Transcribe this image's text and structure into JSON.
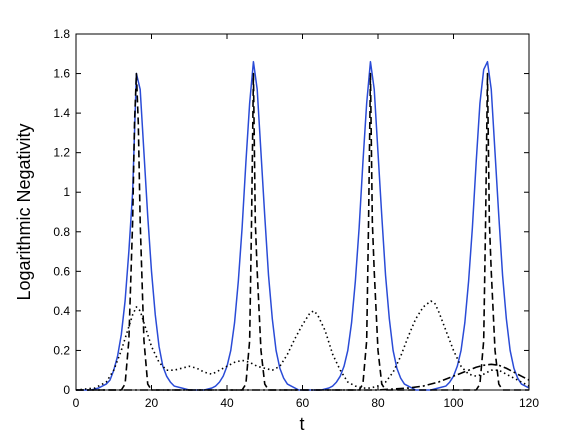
{
  "chart_data": {
    "type": "line",
    "title": "",
    "xlabel": "t",
    "ylabel": "Logarithmic Negativity",
    "xlim": [
      0,
      120
    ],
    "ylim": [
      0,
      1.8
    ],
    "x_ticks": [
      0,
      20,
      40,
      60,
      80,
      100,
      120
    ],
    "y_ticks": [
      0,
      0.2,
      0.4,
      0.6,
      0.8,
      1,
      1.2,
      1.4,
      1.6,
      1.8
    ],
    "x_tick_labels": [
      "0",
      "20",
      "40",
      "60",
      "80",
      "100",
      "120"
    ],
    "y_tick_labels": [
      "0",
      "0.2",
      "0.4",
      "0.6",
      "0.8",
      "1",
      "1.2",
      "1.4",
      "1.6",
      "1.8"
    ],
    "grid": false,
    "legend": "none",
    "series": [
      {
        "style": "solid",
        "color": "#2a4bd7",
        "x": [
          0,
          4,
          6,
          8,
          9,
          10,
          11,
          12,
          13,
          14,
          15,
          16,
          17,
          18,
          19,
          20,
          21,
          22,
          23,
          24,
          25,
          26,
          28,
          30,
          32,
          34,
          36,
          37,
          38,
          39,
          40,
          41,
          42,
          43,
          44,
          45,
          46,
          47,
          48,
          49,
          50,
          51,
          52,
          53,
          54,
          55,
          56,
          57,
          59,
          61,
          63,
          65,
          67,
          68,
          69,
          70,
          71,
          72,
          73,
          74,
          75,
          76,
          77,
          78,
          79,
          80,
          81,
          82,
          83,
          84,
          85,
          86,
          87,
          88,
          90,
          92,
          94,
          96,
          98,
          99,
          100,
          101,
          102,
          103,
          104,
          105,
          106,
          107,
          108,
          109,
          110,
          111,
          112,
          113,
          114,
          115,
          116,
          117,
          118,
          120
        ],
        "y": [
          0,
          0,
          0.01,
          0.03,
          0.05,
          0.1,
          0.17,
          0.28,
          0.45,
          0.7,
          1.0,
          1.6,
          1.52,
          1.2,
          0.88,
          0.6,
          0.38,
          0.22,
          0.12,
          0.07,
          0.04,
          0.02,
          0.01,
          0,
          0,
          0,
          0.01,
          0.02,
          0.04,
          0.07,
          0.12,
          0.2,
          0.34,
          0.55,
          0.82,
          1.15,
          1.45,
          1.66,
          1.52,
          1.2,
          0.88,
          0.58,
          0.36,
          0.2,
          0.11,
          0.06,
          0.03,
          0.02,
          0,
          0,
          0,
          0,
          0.01,
          0.02,
          0.04,
          0.07,
          0.12,
          0.2,
          0.34,
          0.55,
          0.82,
          1.15,
          1.45,
          1.66,
          1.52,
          1.2,
          0.88,
          0.58,
          0.36,
          0.2,
          0.11,
          0.06,
          0.03,
          0.02,
          0,
          0,
          0,
          0.01,
          0.02,
          0.04,
          0.07,
          0.12,
          0.2,
          0.34,
          0.55,
          0.82,
          1.15,
          1.45,
          1.62,
          1.66,
          1.52,
          1.2,
          0.88,
          0.58,
          0.36,
          0.2,
          0.11,
          0.06,
          0.03,
          0.01
        ]
      },
      {
        "style": "dashed",
        "color": "#000000",
        "x": [
          0,
          12,
          13,
          14,
          15,
          15.5,
          16,
          16.5,
          17,
          18,
          19,
          20,
          44,
          45,
          46,
          46.5,
          47,
          47.5,
          48,
          49,
          50,
          51,
          75,
          76,
          77,
          77.5,
          78,
          78.5,
          79,
          80,
          81,
          82,
          106,
          107,
          108,
          108.5,
          109,
          109.5,
          110,
          111,
          112,
          113,
          120
        ],
        "y": [
          0,
          0,
          0.03,
          0.25,
          0.85,
          1.35,
          1.6,
          1.35,
          0.85,
          0.25,
          0.03,
          0,
          0,
          0.03,
          0.25,
          0.85,
          1.6,
          0.85,
          0.6,
          0.2,
          0.03,
          0,
          0,
          0.03,
          0.25,
          0.85,
          1.6,
          0.85,
          0.6,
          0.2,
          0.03,
          0,
          0,
          0.03,
          0.25,
          0.85,
          1.6,
          0.85,
          0.6,
          0.2,
          0.03,
          0,
          0
        ]
      },
      {
        "style": "dotted",
        "color": "#000000",
        "x": [
          0,
          5,
          8,
          10,
          12,
          14,
          15,
          16,
          17,
          18,
          20,
          22,
          24,
          26,
          28,
          30,
          32,
          34,
          36,
          38,
          40,
          42,
          44,
          46,
          48,
          50,
          52,
          54,
          56,
          58,
          60,
          62,
          63,
          64,
          66,
          68,
          70,
          72,
          74,
          76,
          78,
          80,
          82,
          84,
          86,
          88,
          90,
          92,
          94,
          95,
          96,
          98,
          100,
          102,
          104,
          106,
          108,
          110,
          112,
          114,
          116,
          118,
          120
        ],
        "y": [
          0,
          0.01,
          0.04,
          0.1,
          0.2,
          0.32,
          0.38,
          0.42,
          0.4,
          0.34,
          0.22,
          0.14,
          0.1,
          0.1,
          0.11,
          0.12,
          0.11,
          0.09,
          0.08,
          0.1,
          0.12,
          0.14,
          0.15,
          0.14,
          0.12,
          0.11,
          0.1,
          0.12,
          0.18,
          0.26,
          0.33,
          0.39,
          0.4,
          0.38,
          0.3,
          0.18,
          0.1,
          0.04,
          0.02,
          0.01,
          0.01,
          0.02,
          0.04,
          0.09,
          0.17,
          0.27,
          0.36,
          0.42,
          0.45,
          0.44,
          0.4,
          0.3,
          0.2,
          0.12,
          0.08,
          0.07,
          0.08,
          0.1,
          0.1,
          0.08,
          0.06,
          0.04,
          0.02
        ]
      },
      {
        "style": "dashdot",
        "color": "#000000",
        "x": [
          0,
          80,
          84,
          88,
          92,
          96,
          100,
          104,
          106,
          108,
          110,
          112,
          114,
          116,
          118,
          120
        ],
        "y": [
          0,
          0,
          0.005,
          0.01,
          0.02,
          0.04,
          0.07,
          0.1,
          0.115,
          0.125,
          0.13,
          0.125,
          0.11,
          0.09,
          0.07,
          0.05
        ]
      }
    ]
  }
}
